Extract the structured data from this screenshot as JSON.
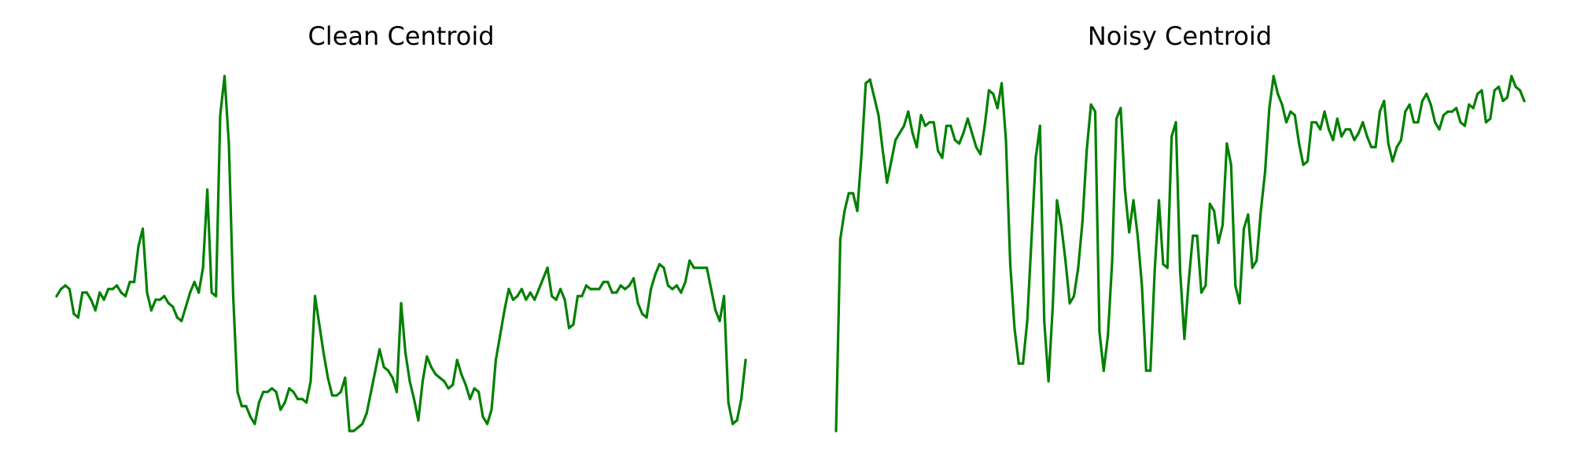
{
  "chart_data": [
    {
      "type": "line",
      "title": "Clean Centroid",
      "xlabel": "",
      "ylabel": "",
      "axes_visible": false,
      "grid": false,
      "legend": "none",
      "color": "#008000",
      "ylim": [
        0,
        1
      ],
      "y": [
        0.38,
        0.4,
        0.41,
        0.4,
        0.33,
        0.32,
        0.39,
        0.39,
        0.37,
        0.34,
        0.39,
        0.37,
        0.4,
        0.4,
        0.41,
        0.39,
        0.38,
        0.42,
        0.42,
        0.52,
        0.57,
        0.39,
        0.34,
        0.37,
        0.37,
        0.38,
        0.36,
        0.35,
        0.32,
        0.31,
        0.35,
        0.39,
        0.42,
        0.39,
        0.46,
        0.68,
        0.39,
        0.38,
        0.89,
        1.0,
        0.81,
        0.38,
        0.11,
        0.07,
        0.07,
        0.04,
        0.02,
        0.08,
        0.11,
        0.11,
        0.12,
        0.11,
        0.06,
        0.08,
        0.12,
        0.11,
        0.09,
        0.09,
        0.08,
        0.14,
        0.38,
        0.3,
        0.22,
        0.15,
        0.1,
        0.1,
        0.11,
        0.15,
        0.0,
        0.0,
        0.01,
        0.02,
        0.05,
        0.11,
        0.17,
        0.23,
        0.18,
        0.17,
        0.15,
        0.11,
        0.36,
        0.22,
        0.14,
        0.09,
        0.03,
        0.14,
        0.21,
        0.18,
        0.16,
        0.15,
        0.14,
        0.12,
        0.13,
        0.2,
        0.16,
        0.13,
        0.09,
        0.12,
        0.11,
        0.04,
        0.02,
        0.06,
        0.2,
        0.27,
        0.34,
        0.4,
        0.37,
        0.38,
        0.4,
        0.37,
        0.39,
        0.37,
        0.4,
        0.43,
        0.46,
        0.38,
        0.37,
        0.4,
        0.37,
        0.29,
        0.3,
        0.38,
        0.38,
        0.41,
        0.4,
        0.4,
        0.4,
        0.42,
        0.42,
        0.39,
        0.39,
        0.41,
        0.4,
        0.41,
        0.43,
        0.36,
        0.33,
        0.32,
        0.4,
        0.44,
        0.47,
        0.46,
        0.41,
        0.4,
        0.41,
        0.39,
        0.42,
        0.48,
        0.46,
        0.46,
        0.46,
        0.46,
        0.4,
        0.34,
        0.31,
        0.38,
        0.08,
        0.02,
        0.03,
        0.09,
        0.2
      ]
    },
    {
      "type": "line",
      "title": "Noisy Centroid",
      "xlabel": "",
      "ylabel": "",
      "axes_visible": false,
      "grid": false,
      "legend": "none",
      "color": "#008000",
      "ylim": [
        0,
        1
      ],
      "y": [
        0.0,
        0.54,
        0.62,
        0.67,
        0.67,
        0.62,
        0.78,
        0.98,
        0.99,
        0.94,
        0.89,
        0.79,
        0.7,
        0.76,
        0.82,
        0.84,
        0.86,
        0.9,
        0.84,
        0.8,
        0.89,
        0.86,
        0.87,
        0.87,
        0.79,
        0.77,
        0.86,
        0.86,
        0.82,
        0.81,
        0.84,
        0.88,
        0.84,
        0.8,
        0.78,
        0.86,
        0.96,
        0.95,
        0.91,
        0.98,
        0.82,
        0.47,
        0.29,
        0.19,
        0.19,
        0.31,
        0.54,
        0.77,
        0.86,
        0.31,
        0.14,
        0.35,
        0.65,
        0.58,
        0.48,
        0.36,
        0.38,
        0.46,
        0.59,
        0.79,
        0.92,
        0.9,
        0.28,
        0.17,
        0.27,
        0.48,
        0.88,
        0.91,
        0.68,
        0.56,
        0.65,
        0.55,
        0.41,
        0.17,
        0.17,
        0.45,
        0.65,
        0.47,
        0.46,
        0.83,
        0.87,
        0.45,
        0.26,
        0.42,
        0.55,
        0.55,
        0.39,
        0.41,
        0.64,
        0.62,
        0.53,
        0.58,
        0.81,
        0.75,
        0.41,
        0.36,
        0.57,
        0.61,
        0.46,
        0.48,
        0.62,
        0.73,
        0.91,
        1.0,
        0.95,
        0.92,
        0.87,
        0.9,
        0.89,
        0.81,
        0.75,
        0.76,
        0.87,
        0.87,
        0.85,
        0.9,
        0.85,
        0.82,
        0.88,
        0.83,
        0.85,
        0.85,
        0.82,
        0.84,
        0.87,
        0.83,
        0.8,
        0.8,
        0.9,
        0.93,
        0.81,
        0.76,
        0.8,
        0.82,
        0.9,
        0.92,
        0.87,
        0.87,
        0.93,
        0.95,
        0.92,
        0.87,
        0.85,
        0.89,
        0.9,
        0.9,
        0.91,
        0.87,
        0.86,
        0.92,
        0.91,
        0.95,
        0.96,
        0.87,
        0.88,
        0.96,
        0.97,
        0.93,
        0.94,
        1.0,
        0.97,
        0.96,
        0.93
      ]
    }
  ]
}
